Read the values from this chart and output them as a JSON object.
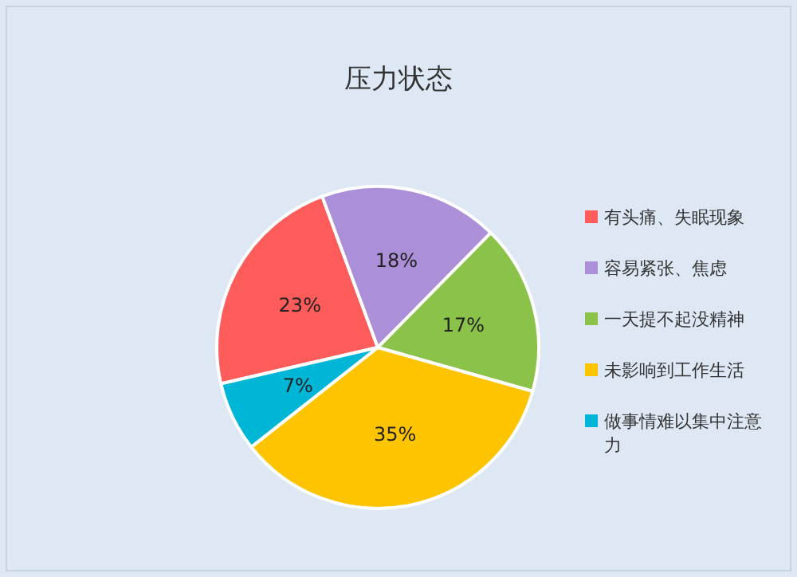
{
  "chart_data": {
    "type": "pie",
    "title": "压力状态",
    "categories": [
      "有头痛、失眠现象",
      "容易紧张、焦虑",
      "一天提不起没精神",
      "未影响到工作生活",
      "做事情难以集中注意力"
    ],
    "values": [
      23,
      18,
      17,
      35,
      7
    ],
    "colors": [
      "#fe5b5b",
      "#ab8fd9",
      "#8bc24a",
      "#ffc400",
      "#00b6d6"
    ],
    "value_labels": [
      "23%",
      "18%",
      "17%",
      "35%",
      "7%"
    ],
    "legend": "right"
  }
}
